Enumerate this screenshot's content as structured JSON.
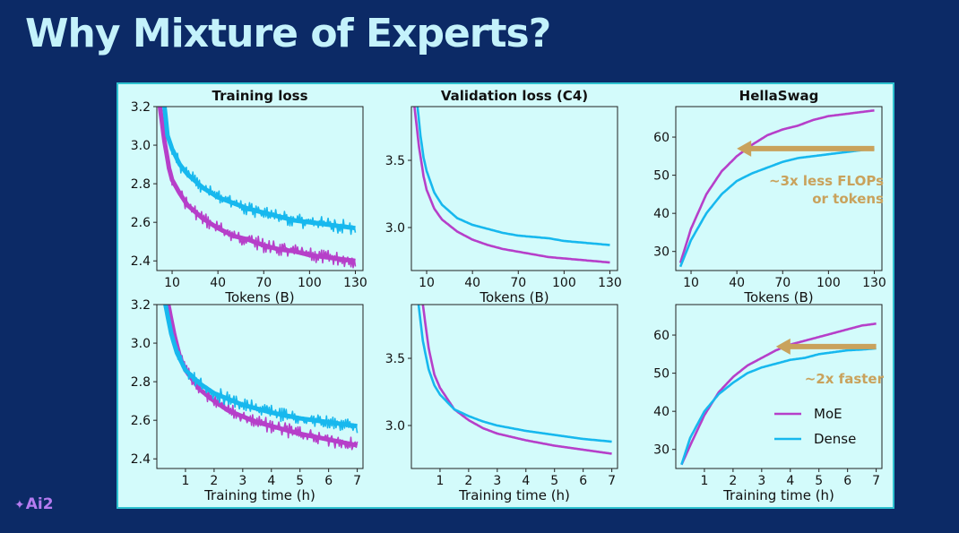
{
  "slide": {
    "title": "Why Mixture of Experts?",
    "brand": "Ai2",
    "brand_icon": "ai2-logo-icon"
  },
  "colors": {
    "background": "#0c2a66",
    "panel": "#d3fbfb",
    "panel_border": "#2ec1cf",
    "title": "#c4f2fb",
    "moe": "#b63fc9",
    "dense": "#17b8ee",
    "annotation": "#c9a25c"
  },
  "chart_data": [
    {
      "id": "train-loss-tokens",
      "type": "line",
      "title": "Training loss",
      "xlabel": "Tokens (B)",
      "ylabel": "",
      "xlim": [
        0,
        135
      ],
      "ylim": [
        2.35,
        3.2
      ],
      "xticks": [
        10,
        40,
        70,
        100,
        130
      ],
      "yticks": [
        2.4,
        2.6,
        2.8,
        3.0,
        3.2
      ],
      "grid": false,
      "series": [
        {
          "name": "MoE",
          "noisy": true,
          "x": [
            2,
            5,
            8,
            10,
            15,
            20,
            30,
            40,
            50,
            60,
            70,
            80,
            90,
            100,
            110,
            120,
            130
          ],
          "y": [
            3.2,
            3.02,
            2.88,
            2.82,
            2.75,
            2.69,
            2.62,
            2.57,
            2.53,
            2.51,
            2.48,
            2.46,
            2.45,
            2.43,
            2.42,
            2.41,
            2.4
          ]
        },
        {
          "name": "Dense",
          "noisy": true,
          "x": [
            5,
            7,
            10,
            15,
            20,
            30,
            40,
            50,
            60,
            70,
            80,
            90,
            100,
            110,
            120,
            130
          ],
          "y": [
            3.2,
            3.05,
            2.98,
            2.9,
            2.85,
            2.78,
            2.73,
            2.7,
            2.67,
            2.65,
            2.63,
            2.61,
            2.6,
            2.59,
            2.58,
            2.57
          ]
        }
      ]
    },
    {
      "id": "val-loss-tokens",
      "type": "line",
      "title": "Validation loss (C4)",
      "xlabel": "Tokens (B)",
      "ylabel": "",
      "xlim": [
        0,
        135
      ],
      "ylim": [
        2.68,
        3.9
      ],
      "xticks": [
        10,
        40,
        70,
        100,
        130
      ],
      "yticks": [
        3.0,
        3.5
      ],
      "grid": false,
      "series": [
        {
          "name": "MoE",
          "noisy": false,
          "x": [
            2,
            5,
            8,
            10,
            15,
            20,
            30,
            40,
            50,
            60,
            70,
            80,
            90,
            100,
            110,
            120,
            130
          ],
          "y": [
            3.9,
            3.6,
            3.38,
            3.28,
            3.14,
            3.06,
            2.97,
            2.91,
            2.87,
            2.84,
            2.82,
            2.8,
            2.78,
            2.77,
            2.76,
            2.75,
            2.74
          ]
        },
        {
          "name": "Dense",
          "noisy": false,
          "x": [
            4,
            6,
            8,
            10,
            15,
            20,
            30,
            40,
            50,
            60,
            70,
            80,
            90,
            100,
            110,
            120,
            130
          ],
          "y": [
            3.9,
            3.68,
            3.52,
            3.42,
            3.26,
            3.17,
            3.07,
            3.02,
            2.99,
            2.96,
            2.94,
            2.93,
            2.92,
            2.9,
            2.89,
            2.88,
            2.87
          ]
        }
      ]
    },
    {
      "id": "hellaswag-tokens",
      "type": "line",
      "title": "HellaSwag",
      "xlabel": "Tokens (B)",
      "ylabel": "",
      "xlim": [
        0,
        135
      ],
      "ylim": [
        25,
        68
      ],
      "xticks": [
        10,
        40,
        70,
        100,
        130
      ],
      "yticks": [
        30,
        40,
        50,
        60
      ],
      "grid": false,
      "series": [
        {
          "name": "MoE",
          "noisy": false,
          "x": [
            3,
            10,
            20,
            30,
            40,
            50,
            60,
            70,
            80,
            90,
            100,
            110,
            120,
            130
          ],
          "y": [
            27,
            36,
            45,
            51,
            55,
            58,
            60.5,
            62,
            63,
            64.5,
            65.5,
            66,
            66.5,
            67
          ]
        },
        {
          "name": "Dense",
          "noisy": false,
          "x": [
            3,
            10,
            20,
            30,
            40,
            50,
            60,
            70,
            80,
            90,
            100,
            110,
            120,
            130
          ],
          "y": [
            26,
            33,
            40,
            45,
            48.5,
            50.5,
            52,
            53.5,
            54.5,
            55,
            55.5,
            56,
            56.5,
            57
          ]
        }
      ],
      "annotation": {
        "lines": [
          "~3x less FLOPs",
          "or tokens"
        ],
        "arrow_y": 57,
        "arrow_from_x": 130,
        "arrow_to_x": 40
      }
    },
    {
      "id": "train-loss-time",
      "type": "line",
      "title": "",
      "xlabel": "Training time (h)",
      "ylabel": "",
      "xlim": [
        0,
        7.2
      ],
      "ylim": [
        2.35,
        3.2
      ],
      "xticks": [
        1,
        2,
        3,
        4,
        5,
        6,
        7
      ],
      "yticks": [
        2.4,
        2.6,
        2.8,
        3.0,
        3.2
      ],
      "grid": false,
      "series": [
        {
          "name": "MoE",
          "noisy": true,
          "x": [
            0.4,
            0.6,
            0.8,
            1,
            1.5,
            2,
            2.5,
            3,
            3.5,
            4,
            5,
            6,
            7
          ],
          "y": [
            3.2,
            3.05,
            2.93,
            2.86,
            2.76,
            2.7,
            2.65,
            2.62,
            2.59,
            2.57,
            2.53,
            2.5,
            2.47
          ]
        },
        {
          "name": "Dense",
          "noisy": true,
          "x": [
            0.3,
            0.5,
            0.7,
            1,
            1.5,
            2,
            2.5,
            3,
            3.5,
            4,
            5,
            6,
            7
          ],
          "y": [
            3.2,
            3.05,
            2.95,
            2.86,
            2.79,
            2.74,
            2.71,
            2.68,
            2.66,
            2.64,
            2.61,
            2.59,
            2.57
          ]
        }
      ]
    },
    {
      "id": "val-loss-time",
      "type": "line",
      "title": "",
      "xlabel": "Training time (h)",
      "ylabel": "",
      "xlim": [
        0,
        7.2
      ],
      "ylim": [
        2.68,
        3.9
      ],
      "xticks": [
        1,
        2,
        3,
        4,
        5,
        6,
        7
      ],
      "yticks": [
        3.0,
        3.5
      ],
      "grid": false,
      "series": [
        {
          "name": "MoE",
          "noisy": false,
          "x": [
            0.4,
            0.6,
            0.8,
            1,
            1.5,
            2,
            2.5,
            3,
            4,
            5,
            6,
            7
          ],
          "y": [
            3.9,
            3.58,
            3.38,
            3.28,
            3.12,
            3.04,
            2.98,
            2.94,
            2.89,
            2.85,
            2.82,
            2.79
          ]
        },
        {
          "name": "Dense",
          "noisy": false,
          "x": [
            0.25,
            0.4,
            0.6,
            0.8,
            1,
            1.5,
            2,
            2.5,
            3,
            4,
            5,
            6,
            7
          ],
          "y": [
            3.9,
            3.63,
            3.42,
            3.3,
            3.23,
            3.12,
            3.07,
            3.03,
            3.0,
            2.96,
            2.93,
            2.9,
            2.88
          ]
        }
      ]
    },
    {
      "id": "hellaswag-time",
      "type": "line",
      "title": "",
      "xlabel": "Training time (h)",
      "ylabel": "",
      "xlim": [
        0,
        7.2
      ],
      "ylim": [
        25,
        68
      ],
      "xticks": [
        1,
        2,
        3,
        4,
        5,
        6,
        7
      ],
      "yticks": [
        30,
        40,
        50,
        60
      ],
      "grid": false,
      "legend": {
        "placement": "bottom-right",
        "entries": [
          "MoE",
          "Dense"
        ]
      },
      "series": [
        {
          "name": "MoE",
          "noisy": false,
          "x": [
            0.2,
            0.5,
            1,
            1.5,
            2,
            2.5,
            3,
            3.5,
            4,
            4.5,
            5,
            5.5,
            6,
            6.5,
            7
          ],
          "y": [
            26,
            31,
            39,
            45,
            49,
            52,
            54,
            56,
            57.5,
            58.5,
            59.5,
            60.5,
            61.5,
            62.5,
            63
          ]
        },
        {
          "name": "Dense",
          "noisy": false,
          "x": [
            0.2,
            0.5,
            1,
            1.5,
            2,
            2.5,
            3,
            3.5,
            4,
            4.5,
            5,
            5.5,
            6,
            6.5,
            7
          ],
          "y": [
            26,
            33,
            40,
            44.5,
            47.5,
            50,
            51.5,
            52.5,
            53.5,
            54,
            55,
            55.5,
            56,
            56.2,
            56.5
          ]
        }
      ],
      "annotation": {
        "lines": [
          "~2x faster"
        ],
        "arrow_y": 57,
        "arrow_from_x": 7,
        "arrow_to_x": 3.5
      }
    }
  ]
}
